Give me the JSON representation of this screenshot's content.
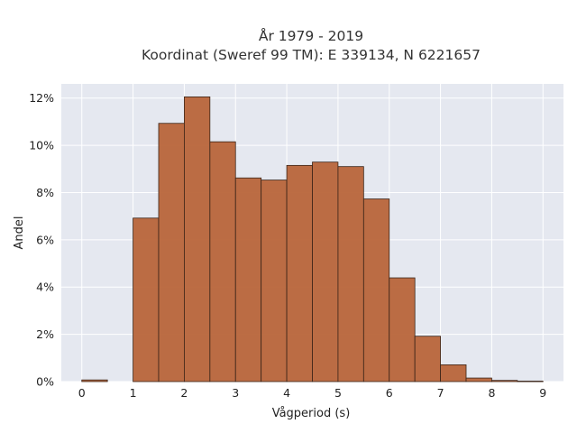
{
  "chart_data": {
    "type": "bar",
    "title": "År 1979 - 2019",
    "subtitle": "Koordinat (Sweref 99 TM): E 339134, N 6221657",
    "xlabel": "Vågperiod (s)",
    "ylabel": "Andel",
    "xlim": [
      -0.4,
      9.4
    ],
    "ylim": [
      0,
      0.126
    ],
    "grid": true,
    "x_ticks": [
      0,
      1,
      2,
      3,
      4,
      5,
      6,
      7,
      8,
      9
    ],
    "x_tick_labels": [
      "0",
      "1",
      "2",
      "3",
      "4",
      "5",
      "6",
      "7",
      "8",
      "9"
    ],
    "y_ticks": [
      0,
      0.02,
      0.04,
      0.06,
      0.08,
      0.1,
      0.12
    ],
    "y_tick_labels": [
      "0%",
      "2%",
      "4%",
      "6%",
      "8%",
      "10%",
      "12%"
    ],
    "bin_width": 0.5,
    "bins": [
      {
        "x0": 0.0,
        "value": 0.0007
      },
      {
        "x0": 1.0,
        "value": 0.0692
      },
      {
        "x0": 1.5,
        "value": 0.1093
      },
      {
        "x0": 2.0,
        "value": 0.1205
      },
      {
        "x0": 2.5,
        "value": 0.1015
      },
      {
        "x0": 3.0,
        "value": 0.0862
      },
      {
        "x0": 3.5,
        "value": 0.0853
      },
      {
        "x0": 4.0,
        "value": 0.0915
      },
      {
        "x0": 4.5,
        "value": 0.0929
      },
      {
        "x0": 5.0,
        "value": 0.091
      },
      {
        "x0": 5.5,
        "value": 0.0773
      },
      {
        "x0": 6.0,
        "value": 0.0439
      },
      {
        "x0": 6.5,
        "value": 0.0192
      },
      {
        "x0": 7.0,
        "value": 0.0071
      },
      {
        "x0": 7.5,
        "value": 0.0015
      },
      {
        "x0": 8.0,
        "value": 0.0005
      },
      {
        "x0": 8.5,
        "value": 0.0002
      }
    ],
    "colors": {
      "bar_fill": "#b8653a",
      "bar_stroke": "#3a2418",
      "plot_bg": "#e5e8f0",
      "grid": "#ffffff"
    }
  }
}
